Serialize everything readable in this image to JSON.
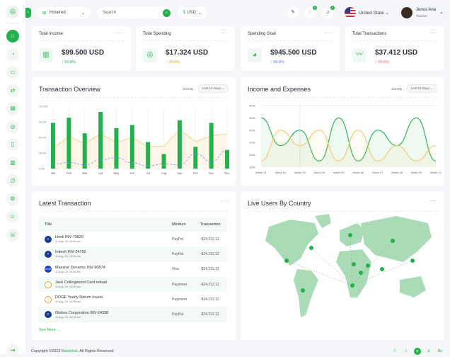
{
  "header": {
    "view_select": "Hovered",
    "search_placeholder": "Search",
    "currency": "USD",
    "country": "United State",
    "user_name": "Jenus Ana",
    "user_role": "Teacher",
    "messages_badge": "2",
    "notifications_badge": "2"
  },
  "sidebar": {
    "items": [
      "home-icon",
      "piggy-bank-icon",
      "card-icon",
      "transfer-icon",
      "wallet-icon",
      "coins-icon",
      "document-icon",
      "chart-icon",
      "clock-icon",
      "settings-icon",
      "user-icon",
      "support-icon"
    ],
    "logout": "logout-icon"
  },
  "stats": [
    {
      "title": "Total Income",
      "value": "$99.500 USD",
      "change": "↑ 50.8%",
      "color": "#22b14c",
      "icon": "bar-chart-icon"
    },
    {
      "title": "Total Spending",
      "value": "$17.324 USD",
      "change": "↑ 33.8%",
      "color": "#e0a030",
      "icon": "coins-icon"
    },
    {
      "title": "Spending Goal",
      "value": "$945.500 USD",
      "change": "↑ 88.8%",
      "color": "#6b7ff0",
      "icon": "pie-chart-icon"
    },
    {
      "title": "Total Transactions",
      "value": "$37.412 USD",
      "change": "↑ 09.8%",
      "color": "#f06b6b",
      "icon": "trend-icon"
    }
  ],
  "sort_label": "Sort By :",
  "sort_value": "Last 15 Days",
  "chart_data": [
    {
      "type": "bar",
      "title": "Transaction Overview",
      "categories": [
        "Jan",
        "Feb",
        "Mar",
        "Apr",
        "May",
        "Jun",
        "Jul",
        "Aug",
        "Sep",
        "Oct",
        "Nov",
        "Dec"
      ],
      "ylim": [
        0,
        120
      ],
      "yticks": [
        "0.00",
        "30.00",
        "60.00",
        "90.00",
        "120.00"
      ],
      "series": [
        {
          "type": "bar",
          "values": [
            88,
            98,
            68,
            109,
            78,
            84,
            51,
            28,
            93,
            42,
            88,
            36
          ],
          "color": "#22b14c"
        },
        {
          "type": "area",
          "values": [
            38,
            63,
            48,
            67,
            50,
            60,
            42,
            43,
            75,
            52,
            63,
            67
          ],
          "color": "#f5c86a"
        },
        {
          "type": "dashed-line",
          "values": [
            8,
            12,
            7,
            17,
            21,
            11,
            5,
            9,
            7,
            29,
            13,
            35
          ],
          "color": "#7b8ef0"
        }
      ]
    },
    {
      "type": "area",
      "title": "Income and Expenses",
      "categories": [
        "Week 01",
        "Week 02",
        "Week 03",
        "Week 04",
        "Week 05",
        "Week 06",
        "Week 07",
        "Week 08",
        "Week 09",
        "Week 10"
      ],
      "ylim": [
        160,
        560
      ],
      "yticks": [
        "160k",
        "240k",
        "320k",
        "400k",
        "480k",
        "560k"
      ],
      "series": [
        {
          "values": [
            480,
            300,
            400,
            200,
            480,
            200,
            400,
            300,
            480,
            200
          ],
          "color": "#22b14c"
        },
        {
          "values": [
            200,
            400,
            300,
            400,
            200,
            400,
            200,
            300,
            200,
            300
          ],
          "color": "#f5c86a"
        }
      ]
    }
  ],
  "transactions": {
    "title": "Latest Transaction",
    "columns": [
      "Title",
      "Medium",
      "Transaction"
    ],
    "rows": [
      {
        "name": "Hooli INV-79820",
        "date": "11 Aug, 24. 10:36 am",
        "medium": "PayPal",
        "amount": "-$24,212,12",
        "logo": "P"
      },
      {
        "name": "Initech INV-24792",
        "date": "11 Aug, 24. 10:36 am",
        "medium": "PayPal",
        "amount": "-$24,212,12",
        "logo": "P"
      },
      {
        "name": "Massive Dynamic INV-90874",
        "date": "11 Aug, 24. 10:36 am",
        "medium": "Visa",
        "amount": "-$24,212,12",
        "logo": "VISA"
      },
      {
        "name": "Jack Collingwood Card reload",
        "date": "11 Aug, 24. 10:36 am",
        "medium": "Payoneer",
        "amount": "-$24,212,12",
        "logo": "O"
      },
      {
        "name": "DOGE Yearly Return Invest.",
        "date": "11 Aug, 24. 10:36 am",
        "medium": "Payoneer",
        "amount": "-$24,212,12",
        "logo": "O"
      },
      {
        "name": "Globex Corporation INV-24398",
        "date": "11 Aug, 24. 10:36 am",
        "medium": "PayPal",
        "amount": "-$24,212,12",
        "logo": "P"
      }
    ],
    "see_more": "See More →"
  },
  "live_users": {
    "title": "Live Users By Country"
  },
  "footer": {
    "prefix": "Copyright ©2023 ",
    "brand": "BankHub",
    "suffix": ". All Rights Reserved",
    "social": [
      "f",
      "t",
      "p",
      "d",
      "Be"
    ]
  }
}
